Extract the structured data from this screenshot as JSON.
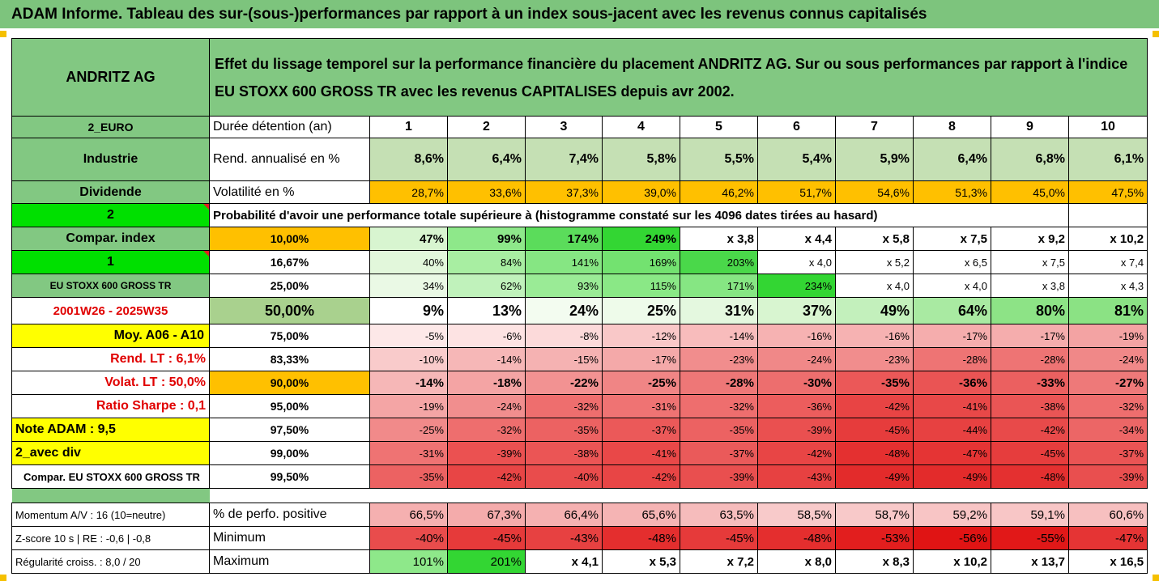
{
  "title": "ADAM Informe. Tableau des sur-(sous-)performances par rapport à un index sous-jacent avec les revenus connus capitalisés",
  "header": {
    "company": "ANDRITZ AG",
    "description_line1": "Effet du lissage temporel sur la performance financière du placement ANDRITZ AG. Sur ou sous performances par rapport à l'indice",
    "description_line2": "EU STOXX 600 GROSS TR avec les revenus CAPITALISES depuis avr 2002."
  },
  "left_labels": {
    "currency": "2_EURO",
    "sector": "Industrie",
    "dividend": "Dividende",
    "two": "2",
    "compar_index": "Compar. index",
    "one": "1",
    "index_name": "EU STOXX 600 GROSS TR",
    "period": "2001W26 - 2025W35",
    "moy": "Moy. A06 - A10",
    "rend_lt": "Rend. LT :   6,1%",
    "volat_lt": "Volat. LT :   50,0%",
    "sharpe": "Ratio Sharpe :   0,1",
    "note": "Note ADAM : 9,5",
    "avec_div": "2_avec div",
    "compar_full": "Compar. EU STOXX 600 GROSS TR",
    "momentum": "Momentum A/V : 16 (10=neutre)",
    "zscore": "Z-score 10 s  | RE : -0,6  | -0,8",
    "regularite": "Régularité croiss. : 8,0 / 20"
  },
  "row_labels": {
    "duree": "Durée détention (an)",
    "rend": "Rend. annualisé en %",
    "vol": "Volatilité en %",
    "proba": "Probabilité d'avoir une performance totale supérieure à (histogramme constaté sur les 4096 dates tirées au hasard)",
    "pct_pos": "% de perfo. positive",
    "minimum": "Minimum",
    "maximum": "Maximum"
  },
  "years": [
    "1",
    "2",
    "3",
    "4",
    "5",
    "6",
    "7",
    "8",
    "9",
    "10"
  ],
  "rend": [
    "8,6%",
    "6,4%",
    "7,4%",
    "5,8%",
    "5,5%",
    "5,4%",
    "5,9%",
    "6,4%",
    "6,8%",
    "6,1%"
  ],
  "vol": [
    "28,7%",
    "33,6%",
    "37,3%",
    "39,0%",
    "46,2%",
    "51,7%",
    "54,6%",
    "51,3%",
    "45,0%",
    "47,5%"
  ],
  "prob_rows": [
    {
      "level": "10,00%",
      "values": [
        "47%",
        "99%",
        "174%",
        "249%",
        "x 3,8",
        "x 4,4",
        "x 5,8",
        "x 7,5",
        "x 9,2",
        "x 10,2"
      ]
    },
    {
      "level": "16,67%",
      "values": [
        "40%",
        "84%",
        "141%",
        "169%",
        "203%",
        "x 4,0",
        "x 5,2",
        "x 6,5",
        "x 7,5",
        "x 7,4"
      ]
    },
    {
      "level": "25,00%",
      "values": [
        "34%",
        "62%",
        "93%",
        "115%",
        "171%",
        "234%",
        "x 4,0",
        "x 4,0",
        "x 3,8",
        "x 4,3"
      ]
    },
    {
      "level": "50,00%",
      "values": [
        "9%",
        "13%",
        "24%",
        "25%",
        "31%",
        "37%",
        "49%",
        "64%",
        "80%",
        "81%"
      ]
    },
    {
      "level": "75,00%",
      "values": [
        "-5%",
        "-6%",
        "-8%",
        "-12%",
        "-14%",
        "-16%",
        "-16%",
        "-17%",
        "-17%",
        "-19%"
      ]
    },
    {
      "level": "83,33%",
      "values": [
        "-10%",
        "-14%",
        "-15%",
        "-17%",
        "-23%",
        "-24%",
        "-23%",
        "-28%",
        "-28%",
        "-24%"
      ]
    },
    {
      "level": "90,00%",
      "values": [
        "-14%",
        "-18%",
        "-22%",
        "-25%",
        "-28%",
        "-30%",
        "-35%",
        "-36%",
        "-33%",
        "-27%"
      ]
    },
    {
      "level": "95,00%",
      "values": [
        "-19%",
        "-24%",
        "-32%",
        "-31%",
        "-32%",
        "-36%",
        "-42%",
        "-41%",
        "-38%",
        "-32%"
      ]
    },
    {
      "level": "97,50%",
      "values": [
        "-25%",
        "-32%",
        "-35%",
        "-37%",
        "-35%",
        "-39%",
        "-45%",
        "-44%",
        "-42%",
        "-34%"
      ]
    },
    {
      "level": "99,00%",
      "values": [
        "-31%",
        "-39%",
        "-38%",
        "-41%",
        "-37%",
        "-42%",
        "-48%",
        "-47%",
        "-45%",
        "-37%"
      ]
    },
    {
      "level": "99,50%",
      "values": [
        "-35%",
        "-42%",
        "-40%",
        "-42%",
        "-39%",
        "-43%",
        "-49%",
        "-49%",
        "-48%",
        "-39%"
      ]
    }
  ],
  "pct_pos": [
    "66,5%",
    "67,3%",
    "66,4%",
    "65,6%",
    "63,5%",
    "58,5%",
    "58,7%",
    "59,2%",
    "59,1%",
    "60,6%"
  ],
  "minimum": [
    "-40%",
    "-45%",
    "-43%",
    "-48%",
    "-45%",
    "-48%",
    "-53%",
    "-56%",
    "-55%",
    "-47%"
  ],
  "maximum": [
    "101%",
    "201%",
    "x 4,1",
    "x 5,3",
    "x 7,2",
    "x 8,0",
    "x 8,3",
    "x 10,2",
    "x 13,7",
    "x 16,5"
  ],
  "colors": {
    "header_green": "#7dc47d",
    "orange": "#ffc000",
    "yellow": "#ffff00",
    "bright_green": "#00e000",
    "red_text": "#e00000"
  }
}
